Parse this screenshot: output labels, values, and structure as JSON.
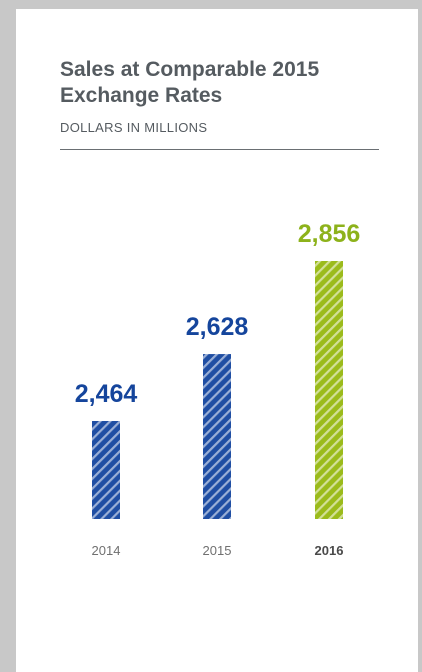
{
  "title": "Sales at Comparable 2015 Exchange Rates",
  "subtitle": "DOLLARS IN MILLIONS",
  "colors": {
    "bar_primary": "#1f4ea3",
    "bar_highlight": "#9bbb1b",
    "label_primary": "#15459c",
    "label_highlight": "#8db21b",
    "axis_text": "#707070",
    "axis_text_highlight": "#4a4a4a"
  },
  "chart_data": {
    "type": "bar",
    "categories": [
      "2014",
      "2015",
      "2016"
    ],
    "values": [
      2464,
      2628,
      2856
    ],
    "value_labels": [
      "2,464",
      "2,628",
      "2,856"
    ],
    "highlight_category": "2016",
    "title": "Sales at Comparable 2015 Exchange Rates",
    "subtitle": "DOLLARS IN MILLIONS",
    "xlabel": "",
    "ylabel": "",
    "bar_pattern": "diagonal-stripes",
    "grid": false,
    "legend": "none"
  }
}
